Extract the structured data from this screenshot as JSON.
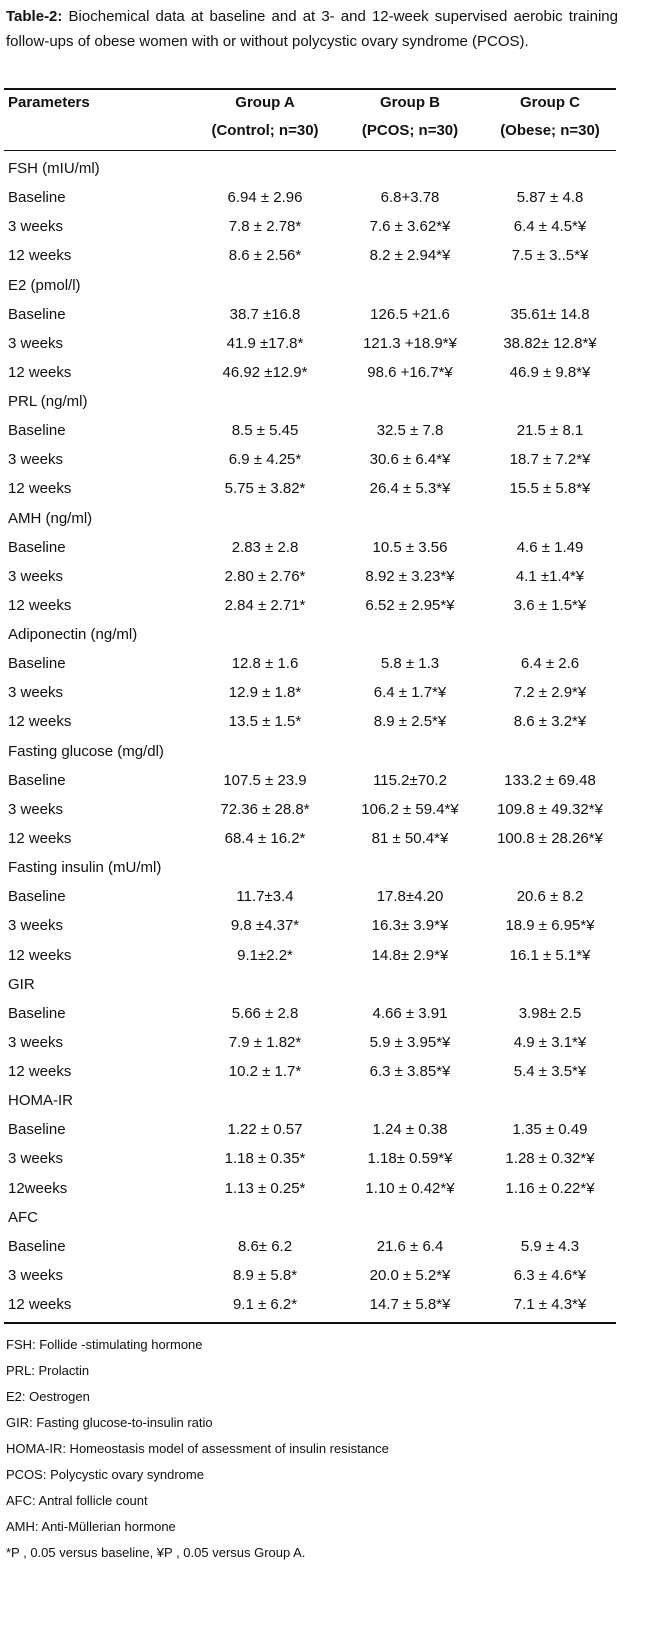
{
  "caption": {
    "label": "Table-2:",
    "text": "Biochemical data at baseline and at 3- and 12-week supervised aerobic training follow-ups of obese women with or without polycystic ovary syndrome (PCOS)."
  },
  "table": {
    "header": {
      "parameters": "Parameters",
      "groups": [
        {
          "name": "Group A",
          "detail": "(Control; n=30)"
        },
        {
          "name": "Group B",
          "detail": "(PCOS; n=30)"
        },
        {
          "name": "Group C",
          "detail": "(Obese; n=30)"
        }
      ]
    },
    "sections": [
      {
        "title": "FSH (mIU/ml)",
        "rows": [
          [
            "Baseline",
            "6.94 ± 2.96",
            "6.8+3.78",
            "5.87 ± 4.8"
          ],
          [
            "3 weeks",
            "7.8 ± 2.78*",
            "7.6 ± 3.62*¥",
            "6.4 ± 4.5*¥"
          ],
          [
            "12 weeks",
            "8.6 ± 2.56*",
            "8.2 ± 2.94*¥",
            "7.5 ± 3..5*¥"
          ]
        ]
      },
      {
        "title": "E2 (pmol/l)",
        "rows": [
          [
            "Baseline",
            "38.7 ±16.8",
            "126.5 +21.6",
            "35.61± 14.8"
          ],
          [
            "3 weeks",
            "41.9 ±17.8*",
            "121.3 +18.9*¥",
            "38.82± 12.8*¥"
          ],
          [
            "12 weeks",
            "46.92 ±12.9*",
            "98.6 +16.7*¥",
            "46.9 ± 9.8*¥"
          ]
        ]
      },
      {
        "title": "PRL (ng/ml)",
        "rows": [
          [
            "Baseline",
            "8.5 ± 5.45",
            "32.5 ± 7.8",
            "21.5 ± 8.1"
          ],
          [
            "3 weeks",
            "6.9 ± 4.25*",
            "30.6 ± 6.4*¥",
            "18.7 ± 7.2*¥"
          ],
          [
            "12 weeks",
            "5.75 ± 3.82*",
            "26.4 ± 5.3*¥",
            "15.5 ± 5.8*¥"
          ]
        ]
      },
      {
        "title": "AMH (ng/ml)",
        "rows": [
          [
            "Baseline",
            "2.83 ± 2.8",
            "10.5 ± 3.56",
            "4.6 ± 1.49"
          ],
          [
            "3 weeks",
            "2.80 ± 2.76*",
            "8.92 ± 3.23*¥",
            "4.1 ±1.4*¥"
          ],
          [
            "12 weeks",
            "2.84 ± 2.71*",
            "6.52 ± 2.95*¥",
            "3.6 ± 1.5*¥"
          ]
        ]
      },
      {
        "title": "Adiponectin (ng/ml)",
        "rows": [
          [
            "Baseline",
            "12.8 ± 1.6",
            "5.8 ± 1.3",
            "6.4 ± 2.6"
          ],
          [
            "3 weeks",
            "12.9 ± 1.8*",
            "6.4 ± 1.7*¥",
            "7.2 ± 2.9*¥"
          ],
          [
            "12 weeks",
            "13.5 ± 1.5*",
            "8.9 ± 2.5*¥",
            "8.6 ± 3.2*¥"
          ]
        ]
      },
      {
        "title": "Fasting glucose (mg/dl)",
        "rows": [
          [
            "Baseline",
            "107.5 ± 23.9",
            "115.2±70.2",
            "133.2 ± 69.48"
          ],
          [
            "3 weeks",
            "72.36 ± 28.8*",
            "106.2 ± 59.4*¥",
            "109.8 ± 49.32*¥"
          ],
          [
            "12 weeks",
            "68.4 ± 16.2*",
            "81 ± 50.4*¥",
            "100.8 ± 28.26*¥"
          ]
        ]
      },
      {
        "title": "Fasting insulin (mU/ml)",
        "rows": [
          [
            "Baseline",
            "11.7±3.4",
            "17.8±4.20",
            "20.6 ± 8.2"
          ],
          [
            "3 weeks",
            "9.8 ±4.37*",
            "16.3± 3.9*¥",
            "18.9 ± 6.95*¥"
          ],
          [
            "12 weeks",
            "9.1±2.2*",
            "14.8± 2.9*¥",
            "16.1 ± 5.1*¥"
          ]
        ]
      },
      {
        "title": "GIR",
        "rows": [
          [
            "Baseline",
            "5.66 ± 2.8",
            "4.66 ± 3.91",
            "3.98± 2.5"
          ],
          [
            "3 weeks",
            "7.9 ± 1.82*",
            "5.9 ± 3.95*¥",
            "4.9 ± 3.1*¥"
          ],
          [
            "12 weeks",
            "10.2 ± 1.7*",
            "6.3 ± 3.85*¥",
            "5.4 ± 3.5*¥"
          ]
        ]
      },
      {
        "title": "HOMA-IR",
        "rows": [
          [
            "Baseline",
            "1.22 ± 0.57",
            "1.24 ± 0.38",
            "1.35 ± 0.49"
          ],
          [
            "3 weeks",
            "1.18 ± 0.35*",
            "1.18± 0.59*¥",
            "1.28 ± 0.32*¥"
          ],
          [
            "12weeks",
            "1.13 ± 0.25*",
            "1.10 ± 0.42*¥",
            "1.16 ± 0.22*¥"
          ]
        ]
      },
      {
        "title": "AFC",
        "rows": [
          [
            "Baseline",
            "8.6± 6.2",
            "21.6 ± 6.4",
            "5.9 ± 4.3"
          ],
          [
            "3 weeks",
            "8.9 ± 5.8*",
            "20.0 ± 5.2*¥",
            "6.3 ± 4.6*¥"
          ],
          [
            "12 weeks",
            "9.1 ± 6.2*",
            "14.7 ± 5.8*¥",
            "7.1 ± 4.3*¥"
          ]
        ]
      }
    ]
  },
  "footnotes": [
    "FSH: Follide -stimulating hormone",
    "PRL: Prolactin",
    "E2: Oestrogen",
    "GIR: Fasting glucose-to-insulin ratio",
    "HOMA-IR: Homeostasis model of assessment of insulin resistance",
    "PCOS: Polycystic ovary syndrome",
    "AFC: Antral follicle count",
    "AMH: Anti-Müllerian hormone",
    "*P , 0.05 versus baseline, ¥P , 0.05 versus Group A."
  ]
}
